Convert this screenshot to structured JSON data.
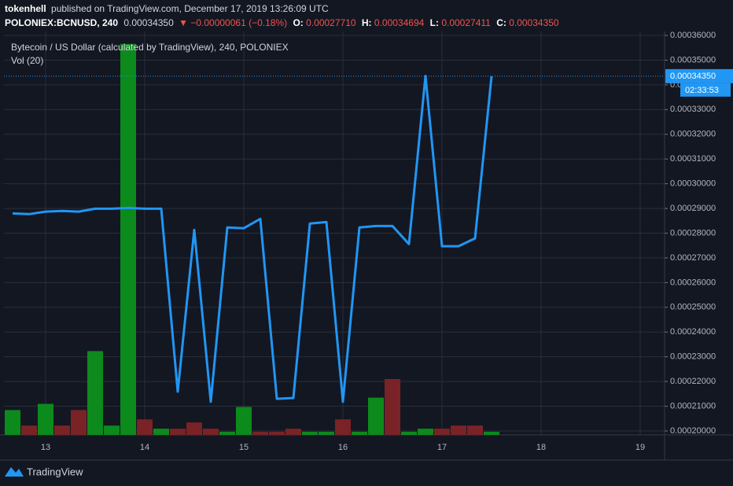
{
  "header": {
    "author": "tokenhell",
    "published": "published on TradingView.com, December 17, 2019 13:26:09 UTC",
    "symbol": "POLONIEX:BCNUSD, 240",
    "last": "0.00034350",
    "change": "▼ −0.00000061 (−0.18%)",
    "open_label": "O:",
    "open": "0.00027710",
    "high_label": "H:",
    "high": "0.00034694",
    "low_label": "L:",
    "low": "0.00027411",
    "close_label": "C:",
    "close": "0.00034350"
  },
  "chart_data": {
    "type": "line",
    "title": "Bytecoin / US Dollar (calculated by TradingView), 240, POLONIEX",
    "categories": [
      null,
      null,
      "13",
      null,
      null,
      null,
      null,
      null,
      "14",
      null,
      null,
      null,
      null,
      null,
      "15",
      null,
      null,
      null,
      null,
      null,
      "16",
      null,
      null,
      null,
      null,
      null,
      "17",
      null,
      null,
      null,
      null,
      null,
      "18",
      null,
      null,
      null,
      null,
      null,
      "19",
      null
    ],
    "series": [
      {
        "name": "BCNUSD",
        "color": "#2196f3",
        "values": [
          0.000288,
          0.0002877,
          0.0002887,
          0.000289,
          0.0002887,
          0.0002899,
          0.0002899,
          0.0002902,
          0.0002899,
          0.0002899,
          0.0002159,
          0.0002813,
          0.0002118,
          0.0002823,
          0.000282,
          0.0002858,
          0.000213,
          0.0002133,
          0.0002839,
          0.0002845,
          0.0002118,
          0.0002823,
          0.0002829,
          0.0002829,
          0.0002756,
          0.0003436,
          0.0002747,
          0.0002747,
          0.0002779,
          0.0003435,
          null,
          null,
          null,
          null,
          null,
          null,
          null,
          null,
          null,
          null
        ]
      }
    ],
    "volume": {
      "name": "Vol (20)",
      "axis": "y2",
      "values": [
        8,
        3,
        10,
        3,
        8,
        27,
        3,
        126,
        5,
        2,
        2,
        4,
        2,
        1,
        9,
        1,
        1,
        2,
        1,
        1,
        5,
        1,
        12,
        18,
        1,
        2,
        2,
        3,
        3,
        1,
        null,
        null,
        null,
        null,
        null,
        null,
        null,
        null,
        null,
        null
      ],
      "colors": [
        "#0c8a1c",
        "#7a2326",
        "#0c8a1c",
        "#7a2326",
        "#7a2326",
        "#0c8a1c",
        "#0c8a1c",
        "#0c8a1c",
        "#7a2326",
        "#0c8a1c",
        "#7a2326",
        "#7a2326",
        "#7a2326",
        "#0c8a1c",
        "#0c8a1c",
        "#7a2326",
        "#7a2326",
        "#7a2326",
        "#0c8a1c",
        "#0c8a1c",
        "#7a2326",
        "#0c8a1c",
        "#0c8a1c",
        "#7a2326",
        "#0c8a1c",
        "#0c8a1c",
        "#7a2326",
        "#7a2326",
        "#7a2326",
        "#0c8a1c",
        null,
        null,
        null,
        null,
        null,
        null,
        null,
        null,
        null,
        null
      ]
    },
    "y2lim": [
      0,
      130
    ],
    "ylim": [
      0.0001984,
      0.0003616
    ],
    "yticks": [
      {
        "value": 0.0002,
        "label": "0.00020000"
      },
      {
        "value": 0.00021,
        "label": "0.00021000"
      },
      {
        "value": 0.00022,
        "label": "0.00022000"
      },
      {
        "value": 0.00023,
        "label": "0.00023000"
      },
      {
        "value": 0.00024,
        "label": "0.00024000"
      },
      {
        "value": 0.00025,
        "label": "0.00025000"
      },
      {
        "value": 0.00026,
        "label": "0.00026000"
      },
      {
        "value": 0.00027,
        "label": "0.00027000"
      },
      {
        "value": 0.00028,
        "label": "0.00028000"
      },
      {
        "value": 0.00029,
        "label": "0.00029000"
      },
      {
        "value": 0.0003,
        "label": "0.00030000"
      },
      {
        "value": 0.00031,
        "label": "0.00031000"
      },
      {
        "value": 0.00032,
        "label": "0.00032000"
      },
      {
        "value": 0.00033,
        "label": "0.00033000"
      },
      {
        "value": 0.00034,
        "label": "0.00034000"
      },
      {
        "value": 0.00035,
        "label": "0.00035000"
      },
      {
        "value": 0.00036,
        "label": "0.00036000"
      }
    ],
    "grid": true,
    "countdown": "02:33:53"
  },
  "footer": {
    "brand": "TradingView"
  }
}
